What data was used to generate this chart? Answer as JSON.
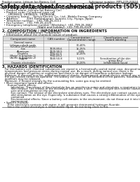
{
  "header_left": "Product name: Lithium Ion Battery Cell",
  "header_right_1": "Substance number: MPS-009-00010",
  "header_right_2": "Established / Revision: Dec.7,2010",
  "title": "Safety data sheet for chemical products (SDS)",
  "s1_title": "1. PRODUCT AND COMPANY IDENTIFICATION",
  "s1_lines": [
    "  • Product name: Lithium Ion Battery Cell",
    "  • Product code: Cylindrical-type cell",
    "       UR18650J, UR18650L, UR18650A",
    "  • Company name:    Sanyo Electric Co., Ltd., Mobile Energy Company",
    "  • Address:         2001 Kamitakanari, Sumoto-City, Hyogo, Japan",
    "  • Telephone number:   +81-799-26-4111",
    "  • Fax number:   +81-799-26-4129",
    "  • Emergency telephone number (Weekday): +81-799-26-3662",
    "                                        (Night and holiday): +81-799-26-4129"
  ],
  "s2_title": "2. COMPOSITION / INFORMATION ON INGREDIENTS",
  "s2_bullet1": "  • Substance or preparation: Preparation",
  "s2_bullet2": "  • Information about the chemical nature of product:",
  "tbl_headers": [
    "Component name",
    "CAS number",
    "Concentration /\nConcentration range",
    "Classification and\nhazard labeling"
  ],
  "tbl_rows": [
    [
      "General name",
      "",
      "",
      ""
    ],
    [
      "Lithium cobalt oxide\n(LiCoO2 or LiCoO2x)",
      "",
      "30-40%",
      ""
    ],
    [
      "Iron",
      "7439-89-6",
      "15-25%",
      ""
    ],
    [
      "Aluminum",
      "7429-90-5",
      "2-8%",
      ""
    ],
    [
      "Graphite\n(Metal in graphite-1)\n(Al-Mn in graphite-2)",
      "7782-42-5\n7782-49-2",
      "10-20%",
      ""
    ],
    [
      "Copper",
      "7440-50-8",
      "5-15%",
      "Sensitization of the skin\ngroup No.2"
    ],
    [
      "Organic electrolyte",
      "",
      "10-20%",
      "Inflammable liquid"
    ]
  ],
  "s3_title": "3. HAZARDS IDENTIFICATION",
  "s3_lines": [
    "   For this battery cell, chemical substances are stored in a hermetically-sealed metal case, designed to withstand",
    "   temperatures and pressure-stress during normal use. As a result, during normal use, there is no",
    "   physical danger of ignition or explosion and there is no danger of hazardous substance leakage.",
    "   However, if exposed to a fire, added mechanical shocks, decomposed, printed electric without any measures,",
    "   the gas release cannot be operated. The battery cell case will be breached of fire-patterns, hazardous",
    "   materials may be released.",
    "   Moreover, if heated strongly by the surrounding fire, some gas may be emitted.",
    "  • Most important hazard and effects:",
    "      Human health effects:",
    "          Inhalation: The release of the electrolyte has an anesthesia action and stimulates a respiratory tract.",
    "          Skin contact: The release of the electrolyte stimulates a skin. The electrolyte skin contact causes a",
    "          sore and stimulation on the skin.",
    "          Eye contact: The release of the electrolyte stimulates eyes. The electrolyte eye contact causes a sore",
    "          and stimulation on the eye. Especially, a substance that causes a strong inflammation of the eye is",
    "          contained.",
    "          Environmental effects: Since a battery cell remains in the environment, do not throw out it into the",
    "          environment.",
    "  • Specific hazards:",
    "      If the electrolyte contacts with water, it will generate detrimental hydrogen fluoride.",
    "      Since the sealed electrolyte is inflammable liquid, do not bring close to fire."
  ],
  "bg_color": "#ffffff",
  "text_color": "#111111",
  "line_color": "#555555",
  "tbl_header_bg": "#d8d8d8",
  "tbl_alt_bg": "#f0f0f0"
}
